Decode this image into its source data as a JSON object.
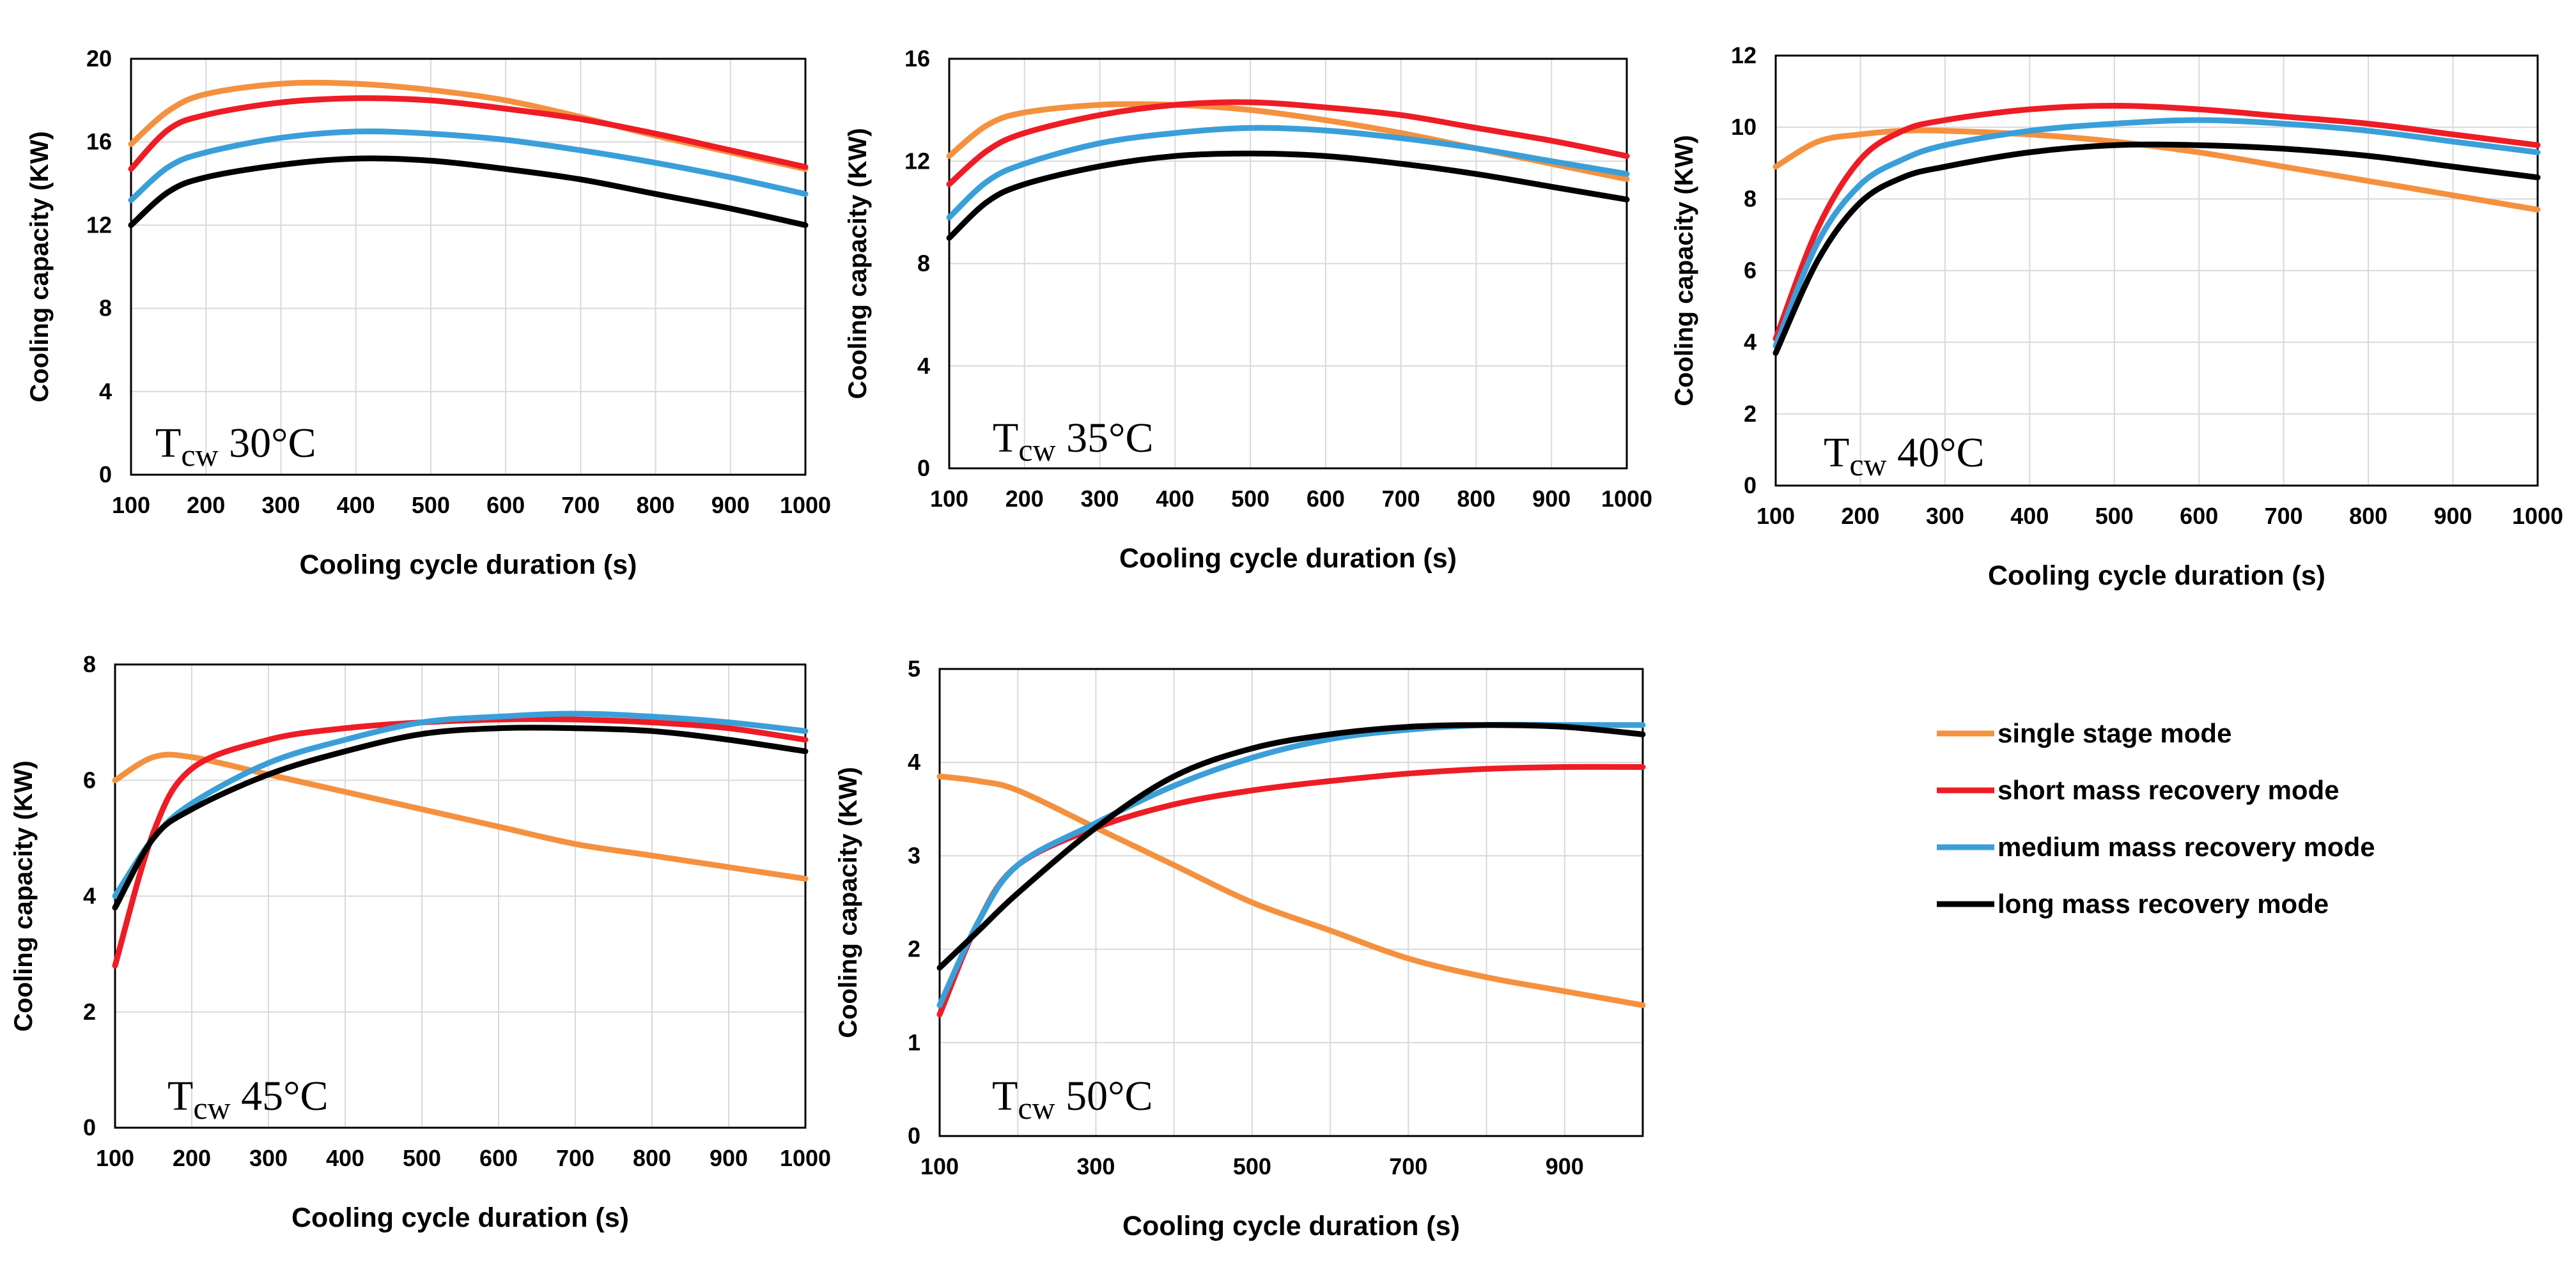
{
  "colors": {
    "single_stage": "#f4913f",
    "short": "#ee1c25",
    "medium": "#3a9fd9",
    "long": "#000000",
    "grid": "#d9d9d9"
  },
  "legend": {
    "items": [
      {
        "key": "single_stage",
        "label": "single stage mode"
      },
      {
        "key": "short",
        "label": "short mass recovery mode"
      },
      {
        "key": "medium",
        "label": "medium mass recovery mode"
      },
      {
        "key": "long",
        "label": "long mass recovery mode"
      }
    ]
  },
  "chart_data": [
    {
      "type": "line",
      "id": "tcw30",
      "annotation": {
        "main": "T",
        "sub": "cw",
        "rest": " 30°C"
      },
      "xlabel": "Cooling cycle duration (s)",
      "ylabel": "Cooling capacity (KW)",
      "xlim": [
        100,
        1000
      ],
      "ylim": [
        0,
        20
      ],
      "xticks": [
        100,
        200,
        300,
        400,
        500,
        600,
        700,
        800,
        900,
        1000
      ],
      "yticks": [
        0,
        4,
        8,
        12,
        16,
        20
      ],
      "grid": true,
      "x": [
        100,
        150,
        200,
        300,
        400,
        500,
        600,
        700,
        800,
        900,
        1000
      ],
      "series": [
        {
          "key": "single_stage",
          "name": "single stage mode",
          "values": [
            15.9,
            17.5,
            18.3,
            18.8,
            18.8,
            18.5,
            18.0,
            17.2,
            16.3,
            15.5,
            14.7
          ]
        },
        {
          "key": "short",
          "name": "short mass recovery mode",
          "values": [
            14.7,
            16.6,
            17.3,
            17.9,
            18.1,
            18.0,
            17.6,
            17.1,
            16.4,
            15.6,
            14.8
          ]
        },
        {
          "key": "medium",
          "name": "medium mass recovery mode",
          "values": [
            13.2,
            14.8,
            15.5,
            16.2,
            16.5,
            16.4,
            16.1,
            15.6,
            15.0,
            14.3,
            13.5
          ]
        },
        {
          "key": "long",
          "name": "long mass recovery mode",
          "values": [
            12.0,
            13.6,
            14.3,
            14.9,
            15.2,
            15.1,
            14.7,
            14.2,
            13.5,
            12.8,
            12.0
          ]
        }
      ]
    },
    {
      "type": "line",
      "id": "tcw35",
      "annotation": {
        "main": "T",
        "sub": "cw",
        "rest": " 35°C"
      },
      "xlabel": "Cooling cycle duration (s)",
      "ylabel": "Cooling capacity (KW)",
      "xlim": [
        100,
        1000
      ],
      "ylim": [
        0,
        16
      ],
      "xticks": [
        100,
        200,
        300,
        400,
        500,
        600,
        700,
        800,
        900,
        1000
      ],
      "yticks": [
        0,
        4,
        8,
        12,
        16
      ],
      "grid": true,
      "x": [
        100,
        150,
        200,
        300,
        400,
        500,
        600,
        700,
        800,
        900,
        1000
      ],
      "series": [
        {
          "key": "single_stage",
          "name": "single stage mode",
          "values": [
            12.2,
            13.4,
            13.9,
            14.2,
            14.2,
            14.0,
            13.6,
            13.1,
            12.5,
            11.9,
            11.3
          ]
        },
        {
          "key": "short",
          "name": "short mass recovery mode",
          "values": [
            11.1,
            12.4,
            13.1,
            13.8,
            14.2,
            14.3,
            14.1,
            13.8,
            13.3,
            12.8,
            12.2
          ]
        },
        {
          "key": "medium",
          "name": "medium mass recovery mode",
          "values": [
            9.8,
            11.2,
            11.9,
            12.7,
            13.1,
            13.3,
            13.2,
            12.9,
            12.5,
            12.0,
            11.5
          ]
        },
        {
          "key": "long",
          "name": "long mass recovery mode",
          "values": [
            9.0,
            10.4,
            11.1,
            11.8,
            12.2,
            12.3,
            12.2,
            11.9,
            11.5,
            11.0,
            10.5
          ]
        }
      ]
    },
    {
      "type": "line",
      "id": "tcw40",
      "annotation": {
        "main": "T",
        "sub": "cw",
        "rest": " 40°C"
      },
      "xlabel": "Cooling cycle duration (s)",
      "ylabel": "Cooling capacity (KW)",
      "xlim": [
        100,
        1000
      ],
      "ylim": [
        0,
        12
      ],
      "xticks": [
        100,
        200,
        300,
        400,
        500,
        600,
        700,
        800,
        900,
        1000
      ],
      "yticks": [
        0,
        2,
        4,
        6,
        8,
        10,
        12
      ],
      "grid": true,
      "x": [
        100,
        150,
        200,
        250,
        300,
        400,
        500,
        600,
        700,
        800,
        900,
        1000
      ],
      "series": [
        {
          "key": "single_stage",
          "name": "single stage mode",
          "values": [
            8.9,
            9.6,
            9.8,
            9.9,
            9.9,
            9.8,
            9.6,
            9.3,
            8.9,
            8.5,
            8.1,
            7.7
          ]
        },
        {
          "key": "short",
          "name": "short mass recovery mode",
          "values": [
            4.1,
            7.2,
            9.1,
            9.9,
            10.2,
            10.5,
            10.6,
            10.5,
            10.3,
            10.1,
            9.8,
            9.5
          ]
        },
        {
          "key": "medium",
          "name": "medium mass recovery mode",
          "values": [
            3.9,
            6.8,
            8.4,
            9.1,
            9.5,
            9.9,
            10.1,
            10.2,
            10.1,
            9.9,
            9.6,
            9.3
          ]
        },
        {
          "key": "long",
          "name": "long mass recovery mode",
          "values": [
            3.7,
            6.3,
            7.9,
            8.6,
            8.9,
            9.3,
            9.5,
            9.5,
            9.4,
            9.2,
            8.9,
            8.6
          ]
        }
      ]
    },
    {
      "type": "line",
      "id": "tcw45",
      "annotation": {
        "main": "T",
        "sub": "cw",
        "rest": " 45°C"
      },
      "xlabel": "Cooling cycle duration (s)",
      "ylabel": "Cooling capacity (KW)",
      "xlim": [
        100,
        1000
      ],
      "ylim": [
        0,
        8
      ],
      "xticks": [
        100,
        200,
        300,
        400,
        500,
        600,
        700,
        800,
        900,
        1000
      ],
      "yticks": [
        0,
        2,
        4,
        6,
        8
      ],
      "grid": true,
      "x": [
        100,
        150,
        200,
        300,
        400,
        500,
        600,
        700,
        800,
        900,
        1000
      ],
      "series": [
        {
          "key": "single_stage",
          "name": "single stage mode",
          "values": [
            6.0,
            6.4,
            6.4,
            6.1,
            5.8,
            5.5,
            5.2,
            4.9,
            4.7,
            4.5,
            4.3
          ]
        },
        {
          "key": "short",
          "name": "short mass recovery mode",
          "values": [
            2.8,
            5.1,
            6.2,
            6.7,
            6.9,
            7.0,
            7.05,
            7.05,
            7.0,
            6.9,
            6.7
          ]
        },
        {
          "key": "medium",
          "name": "medium mass recovery mode",
          "values": [
            4.0,
            5.0,
            5.6,
            6.3,
            6.7,
            7.0,
            7.1,
            7.15,
            7.1,
            7.0,
            6.85
          ]
        },
        {
          "key": "long",
          "name": "long mass recovery mode",
          "values": [
            3.8,
            5.0,
            5.5,
            6.1,
            6.5,
            6.8,
            6.9,
            6.9,
            6.85,
            6.7,
            6.5
          ]
        }
      ]
    },
    {
      "type": "line",
      "id": "tcw50",
      "annotation": {
        "main": "T",
        "sub": "cw",
        "rest": " 50°C"
      },
      "xlabel": "Cooling cycle duration (s)",
      "ylabel": "Cooling capacity (KW)",
      "xlim": [
        100,
        1000
      ],
      "ylim": [
        0,
        5
      ],
      "xticks": [
        100,
        300,
        500,
        700,
        900
      ],
      "yticks": [
        0,
        1,
        2,
        3,
        4,
        5
      ],
      "grid": true,
      "x": [
        100,
        150,
        200,
        300,
        400,
        500,
        600,
        700,
        800,
        900,
        1000
      ],
      "series": [
        {
          "key": "single_stage",
          "name": "single stage mode",
          "values": [
            3.85,
            3.8,
            3.7,
            3.3,
            2.9,
            2.5,
            2.2,
            1.9,
            1.7,
            1.55,
            1.4
          ]
        },
        {
          "key": "short",
          "name": "short mass recovery mode",
          "values": [
            1.3,
            2.3,
            2.9,
            3.3,
            3.55,
            3.7,
            3.8,
            3.88,
            3.93,
            3.95,
            3.95
          ]
        },
        {
          "key": "medium",
          "name": "medium mass recovery mode",
          "values": [
            1.4,
            2.3,
            2.9,
            3.35,
            3.75,
            4.05,
            4.25,
            4.35,
            4.4,
            4.4,
            4.4
          ]
        },
        {
          "key": "long",
          "name": "long mass recovery mode",
          "values": [
            1.8,
            2.2,
            2.6,
            3.3,
            3.85,
            4.15,
            4.3,
            4.38,
            4.4,
            4.38,
            4.3
          ]
        }
      ]
    }
  ]
}
